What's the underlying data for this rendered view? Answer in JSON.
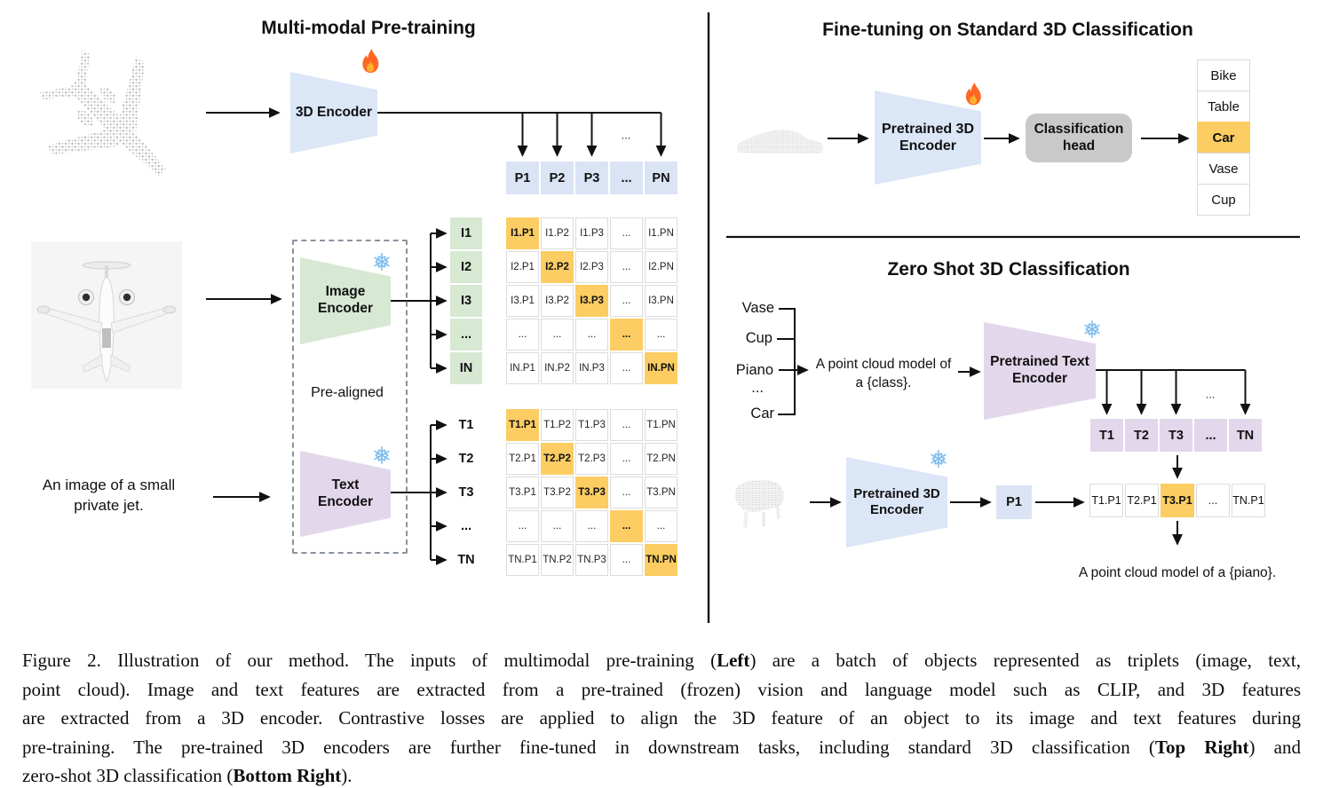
{
  "colors": {
    "blue": "#dbe6f7",
    "cellblue": "#dae4f5",
    "green": "#d7e8d3",
    "purple": "#e3d7eb",
    "hl": "#fbcd63",
    "headgray": "#c9c9c9"
  },
  "icons": {
    "flame": "fire-icon",
    "snowflake": "snowflake-icon"
  },
  "ellipsis": "...",
  "left_panel": {
    "title": "Multi-modal Pre-training",
    "encoder_3d_label": "3D Encoder",
    "image_encoder_label": "Image Encoder",
    "text_encoder_label": "Text Encoder",
    "pre_aligned_label": "Pre-aligned",
    "image_caption_lines": [
      "An image of a small",
      "private jet."
    ],
    "p_row": [
      "P1",
      "P2",
      "P3",
      "...",
      "PN"
    ],
    "image_rows": [
      "I1",
      "I2",
      "I3",
      "...",
      "IN"
    ],
    "text_rows": [
      "T1",
      "T2",
      "T3",
      "...",
      "TN"
    ],
    "image_matrix": [
      [
        "I1.P1",
        "I1.P2",
        "I1.P3",
        "...",
        "I1.PN"
      ],
      [
        "I2.P1",
        "I2.P2",
        "I2.P3",
        "...",
        "I2.PN"
      ],
      [
        "I3.P1",
        "I3.P2",
        "I3.P3",
        "...",
        "I3.PN"
      ],
      [
        "...",
        "...",
        "...",
        "...",
        "..."
      ],
      [
        "IN.P1",
        "IN.P2",
        "IN.P3",
        "...",
        "IN.PN"
      ]
    ],
    "text_matrix": [
      [
        "T1.P1",
        "T1.P2",
        "T1.P3",
        "...",
        "T1.PN"
      ],
      [
        "T2.P1",
        "T2.P2",
        "T2.P3",
        "...",
        "T2.PN"
      ],
      [
        "T3.P1",
        "T3.P2",
        "T3.P3",
        "...",
        "T3.PN"
      ],
      [
        "...",
        "...",
        "...",
        "...",
        "..."
      ],
      [
        "TN.P1",
        "TN.P2",
        "TN.P3",
        "...",
        "TN.PN"
      ]
    ]
  },
  "top_right": {
    "title": "Fine-tuning on Standard 3D Classification",
    "encoder_label": "Pretrained 3D Encoder",
    "head_label": "Classification head",
    "classes": [
      "Bike",
      "Table",
      "Car",
      "Vase",
      "Cup"
    ],
    "predicted_index": 2
  },
  "bottom_right": {
    "title": "Zero Shot 3D Classification",
    "class_prompts": [
      "Vase",
      "Cup",
      "Piano",
      "...",
      "Car"
    ],
    "prompt_lines": [
      "A point cloud model of",
      "a {class}."
    ],
    "text_encoder_label": "Pretrained Text Encoder",
    "encoder_label": "Pretrained 3D Encoder",
    "t_row": [
      "T1",
      "T2",
      "T3",
      "...",
      "TN"
    ],
    "p_label": "P1",
    "similarity_row": [
      "T1.P1",
      "T2.P1",
      "T3.P1",
      "...",
      "TN.P1"
    ],
    "predicted_index": 2,
    "result_text": "A point cloud model of a {piano}."
  },
  "caption": {
    "lines": [
      [
        {
          "text": "Figure 2. Illustration of our method. The inputs of multimodal pre-training (",
          "bold": false
        },
        {
          "text": "Left",
          "bold": true
        },
        {
          "text": ") are a batch of objects represented as triplets (image, text,",
          "bold": false
        }
      ],
      [
        {
          "text": "point cloud). Image and text features are extracted from a pre-trained (frozen) vision and language model such as CLIP, and 3D features",
          "bold": false
        }
      ],
      [
        {
          "text": "are extracted from a 3D encoder. Contrastive losses are applied to align the 3D feature of an object to its image and text features during",
          "bold": false
        }
      ],
      [
        {
          "text": "pre-training. The pre-trained 3D encoders are further fine-tuned in downstream tasks, including standard 3D classification (",
          "bold": false
        },
        {
          "text": "Top Right",
          "bold": true
        },
        {
          "text": ") and",
          "bold": false
        }
      ],
      [
        {
          "text": "zero-shot 3D classification (",
          "bold": false
        },
        {
          "text": "Bottom Right",
          "bold": true
        },
        {
          "text": ").",
          "bold": false
        }
      ]
    ]
  }
}
